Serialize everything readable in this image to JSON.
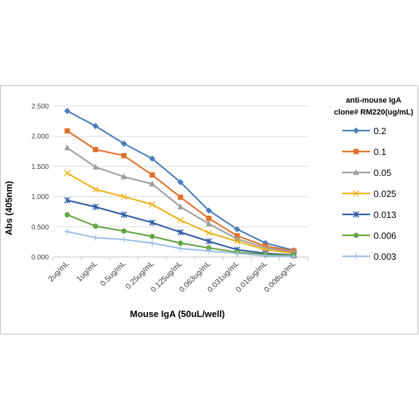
{
  "chart_data": {
    "type": "line",
    "xlabel": "Mouse IgA (50uL/well)",
    "ylabel": "Abs (405nm)",
    "categories": [
      "2ug/mL",
      "1ug/mL",
      "0.5ug/mL",
      "0.25ug/mL",
      "0.125ug/mL",
      "0.063ug/mL",
      "0.031ug/mL",
      "0.016ug/mL",
      "0.008ug/mL"
    ],
    "ylim": [
      0,
      2.5
    ],
    "yticks": [
      "0.000",
      "0.500",
      "1.000",
      "1.500",
      "2.000",
      "2.500"
    ],
    "grid": true,
    "legend": {
      "title_line1": "anti-mouse IgA",
      "title_line2": "clone# RM220(ug/mL)",
      "placement": "right"
    },
    "series": [
      {
        "name": "0.2",
        "color": "#4a7ebb",
        "marker": "diamond",
        "values": [
          2.42,
          2.17,
          1.88,
          1.63,
          1.24,
          0.77,
          0.46,
          0.23,
          0.11
        ]
      },
      {
        "name": "0.1",
        "color": "#e0712c",
        "marker": "square",
        "values": [
          2.09,
          1.78,
          1.68,
          1.36,
          0.99,
          0.64,
          0.35,
          0.18,
          0.1
        ]
      },
      {
        "name": "0.05",
        "color": "#9e9e9e",
        "marker": "triangle",
        "values": [
          1.81,
          1.49,
          1.33,
          1.21,
          0.83,
          0.55,
          0.3,
          0.15,
          0.08
        ]
      },
      {
        "name": "0.025",
        "color": "#f0b11a",
        "marker": "x",
        "values": [
          1.39,
          1.12,
          1.0,
          0.87,
          0.61,
          0.4,
          0.26,
          0.12,
          0.06
        ]
      },
      {
        "name": "0.013",
        "color": "#2e5aa8",
        "marker": "star",
        "values": [
          0.94,
          0.83,
          0.7,
          0.57,
          0.41,
          0.26,
          0.12,
          0.06,
          0.03
        ]
      },
      {
        "name": "0.006",
        "color": "#63a543",
        "marker": "circle",
        "values": [
          0.7,
          0.51,
          0.43,
          0.34,
          0.23,
          0.15,
          0.08,
          0.04,
          0.02
        ]
      },
      {
        "name": "0.003",
        "color": "#9fbfe6",
        "marker": "plus",
        "values": [
          0.42,
          0.32,
          0.29,
          0.23,
          0.14,
          0.1,
          0.06,
          0.02,
          0.01
        ]
      }
    ]
  }
}
